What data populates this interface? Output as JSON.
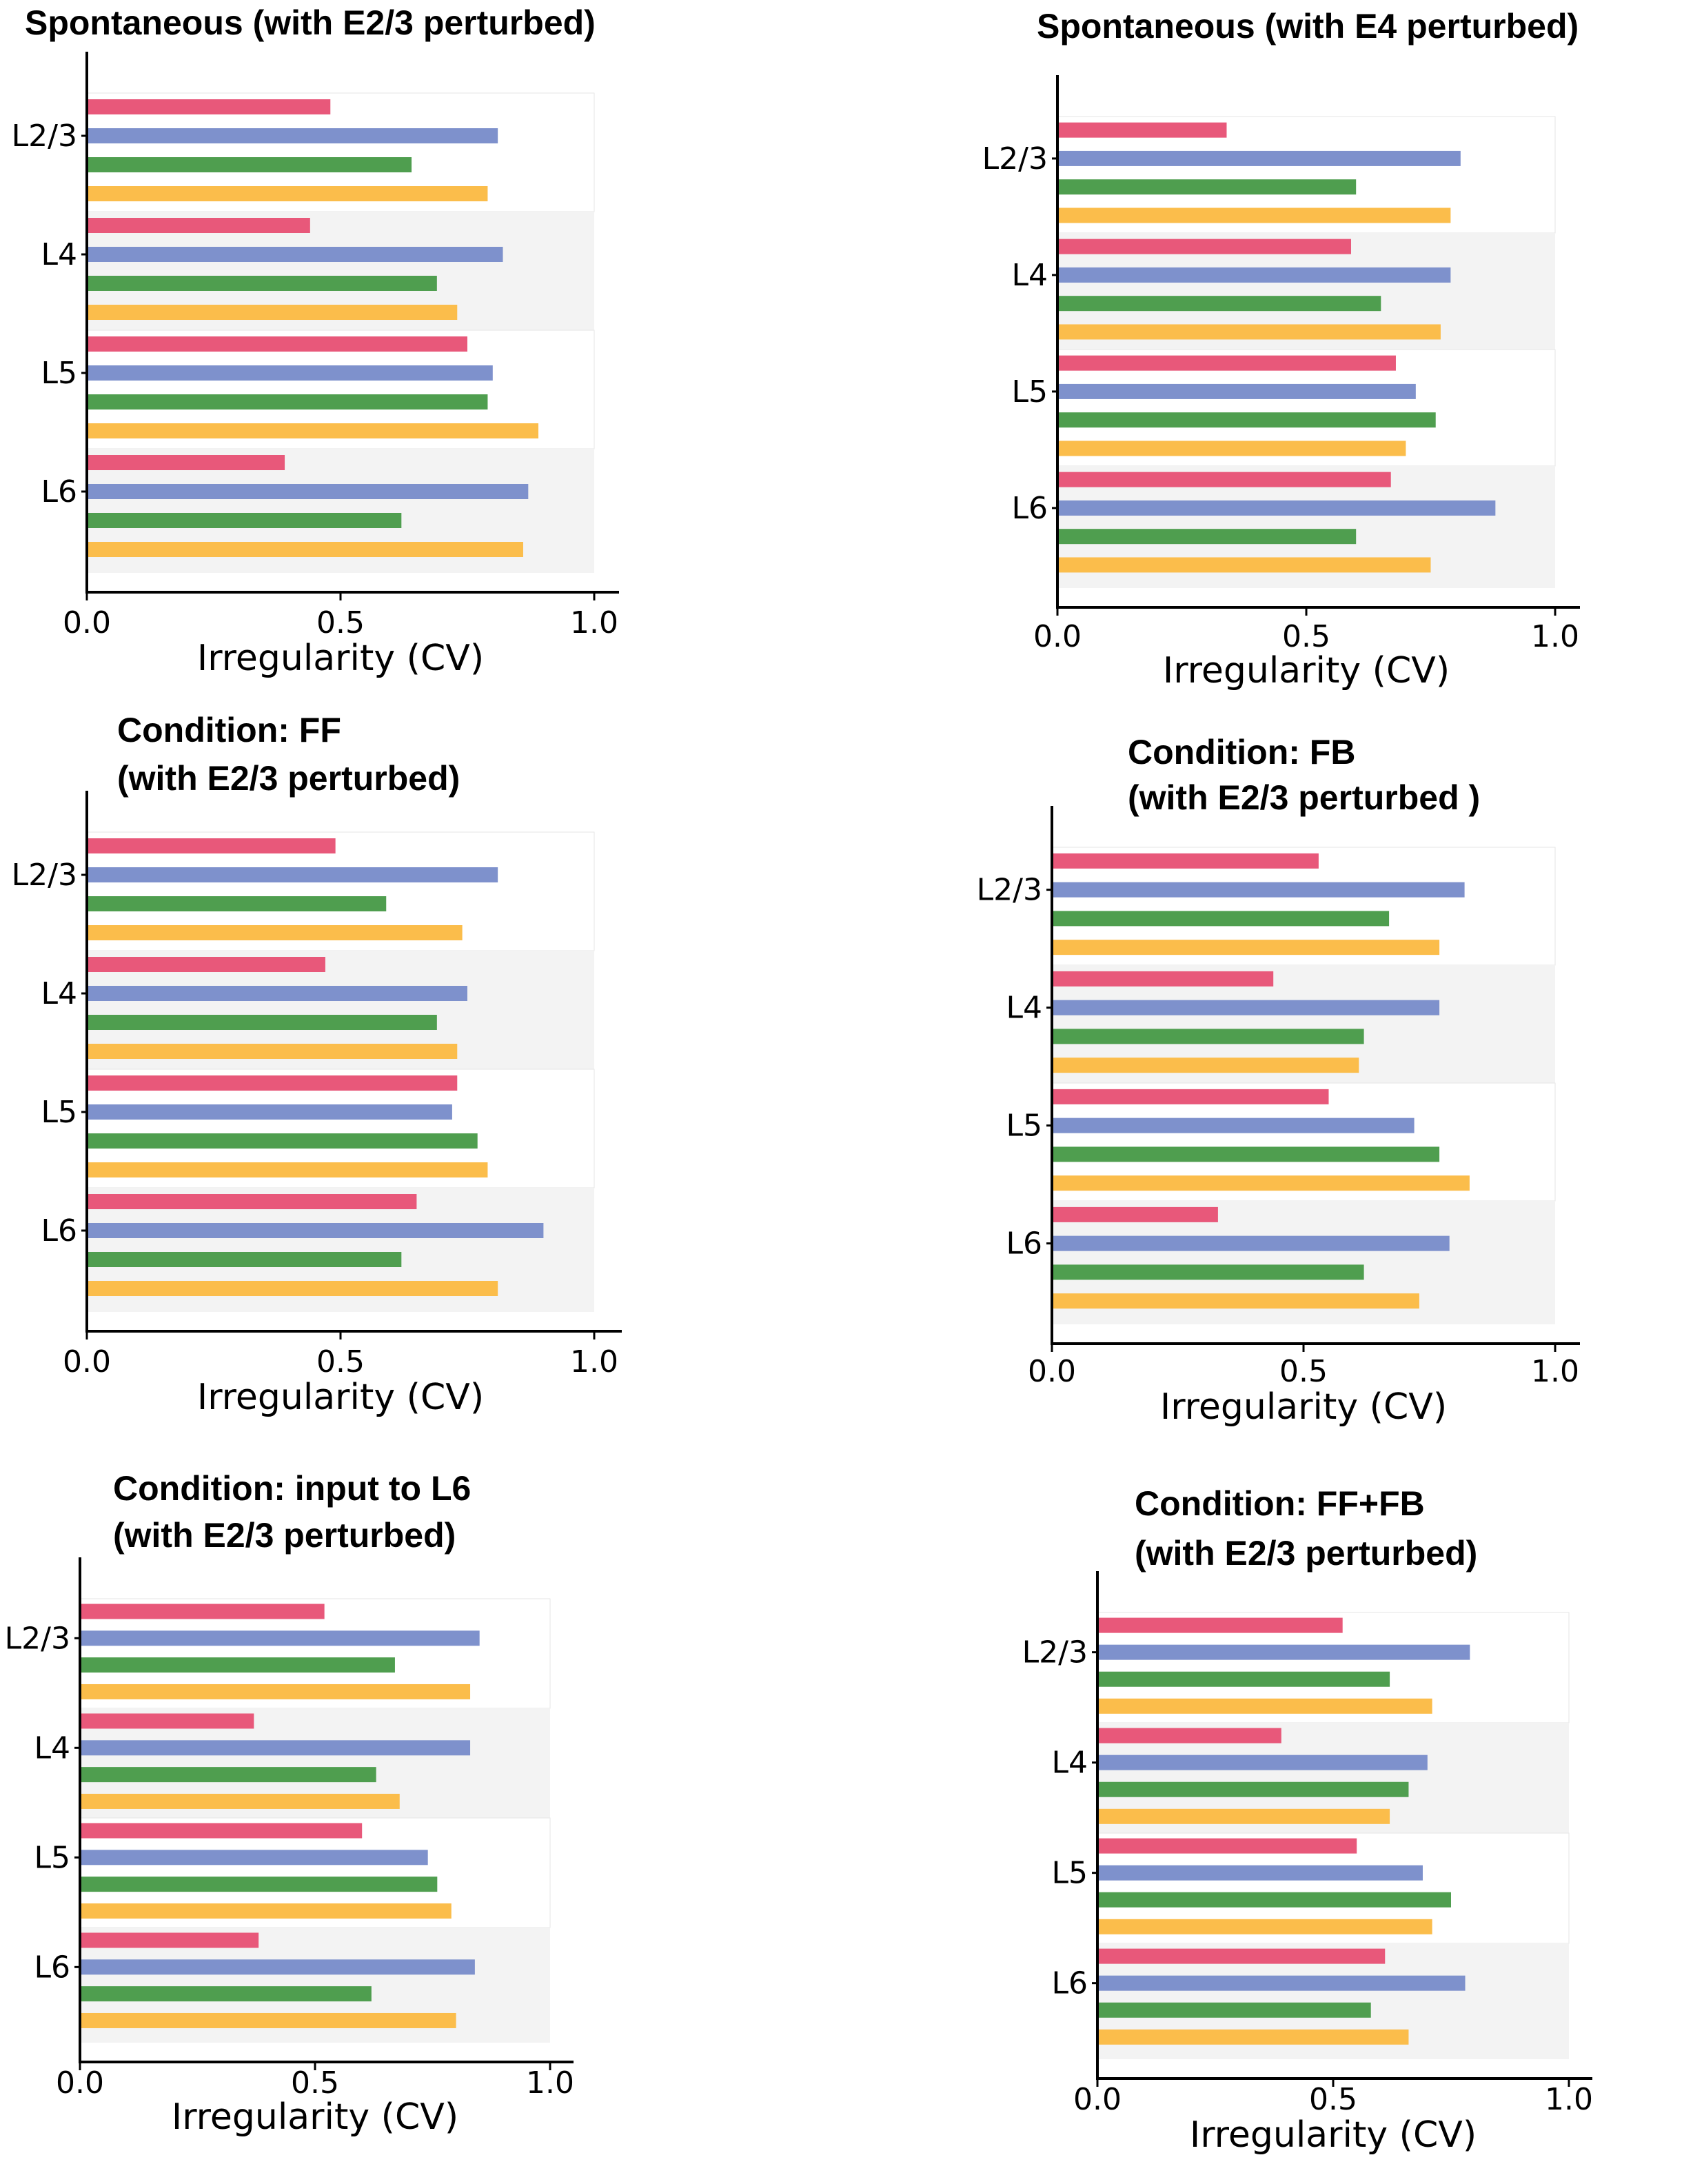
{
  "colors": {
    "series": [
      "#e8587a",
      "#7e91cc",
      "#4f9e4f",
      "#fbbd4b"
    ],
    "band_shade": "#f3f3f3",
    "axis": "#000000"
  },
  "chart_data": [
    {
      "type": "bar",
      "orientation": "horizontal",
      "title": [
        "Spontaneous (with E2/3 perturbed)"
      ],
      "categories": [
        "L2/3",
        "L4",
        "L5",
        "L6"
      ],
      "series": [
        {
          "values": [
            0.48,
            0.44,
            0.75,
            0.39
          ]
        },
        {
          "values": [
            0.81,
            0.82,
            0.8,
            0.87
          ]
        },
        {
          "values": [
            0.64,
            0.69,
            0.79,
            0.62
          ]
        },
        {
          "values": [
            0.79,
            0.73,
            0.89,
            0.86
          ]
        }
      ],
      "xlabel": "Irregularity (CV)",
      "xlim": [
        0.0,
        1.0
      ],
      "xticks": [
        "0.0",
        "0.5",
        "1.0"
      ],
      "grid": false
    },
    {
      "type": "bar",
      "orientation": "horizontal",
      "title": [
        "Spontaneous (with E4 perturbed)"
      ],
      "categories": [
        "L2/3",
        "L4",
        "L5",
        "L6"
      ],
      "series": [
        {
          "values": [
            0.34,
            0.59,
            0.68,
            0.67
          ]
        },
        {
          "values": [
            0.81,
            0.79,
            0.72,
            0.88
          ]
        },
        {
          "values": [
            0.6,
            0.65,
            0.76,
            0.6
          ]
        },
        {
          "values": [
            0.79,
            0.77,
            0.7,
            0.75
          ]
        }
      ],
      "xlabel": "Irregularity (CV)",
      "xlim": [
        0.0,
        1.0
      ],
      "xticks": [
        "0.0",
        "0.5",
        "1.0"
      ],
      "grid": false
    },
    {
      "type": "bar",
      "orientation": "horizontal",
      "title": [
        "Condition: FF",
        "(with E2/3 perturbed)"
      ],
      "categories": [
        "L2/3",
        "L4",
        "L5",
        "L6"
      ],
      "series": [
        {
          "values": [
            0.49,
            0.47,
            0.73,
            0.65
          ]
        },
        {
          "values": [
            0.81,
            0.75,
            0.72,
            0.9
          ]
        },
        {
          "values": [
            0.59,
            0.69,
            0.77,
            0.62
          ]
        },
        {
          "values": [
            0.74,
            0.73,
            0.79,
            0.81
          ]
        }
      ],
      "xlabel": "Irregularity (CV)",
      "xlim": [
        0.0,
        1.0
      ],
      "xticks": [
        "0.0",
        "0.5",
        "1.0"
      ],
      "grid": false
    },
    {
      "type": "bar",
      "orientation": "horizontal",
      "title": [
        "Condition: FB",
        "(with E2/3 perturbed )"
      ],
      "categories": [
        "L2/3",
        "L4",
        "L5",
        "L6"
      ],
      "series": [
        {
          "values": [
            0.53,
            0.44,
            0.55,
            0.33
          ]
        },
        {
          "values": [
            0.82,
            0.77,
            0.72,
            0.79
          ]
        },
        {
          "values": [
            0.67,
            0.62,
            0.77,
            0.62
          ]
        },
        {
          "values": [
            0.77,
            0.61,
            0.83,
            0.73
          ]
        }
      ],
      "xlabel": "Irregularity (CV)",
      "xlim": [
        0.0,
        1.0
      ],
      "xticks": [
        "0.0",
        "0.5",
        "1.0"
      ],
      "grid": false
    },
    {
      "type": "bar",
      "orientation": "horizontal",
      "title": [
        "Condition: input to L6",
        "(with E2/3 perturbed)"
      ],
      "categories": [
        "L2/3",
        "L4",
        "L5",
        "L6"
      ],
      "series": [
        {
          "values": [
            0.52,
            0.37,
            0.6,
            0.38
          ]
        },
        {
          "values": [
            0.85,
            0.83,
            0.74,
            0.84
          ]
        },
        {
          "values": [
            0.67,
            0.63,
            0.76,
            0.62
          ]
        },
        {
          "values": [
            0.83,
            0.68,
            0.79,
            0.8
          ]
        }
      ],
      "xlabel": "Irregularity (CV)",
      "xlim": [
        0.0,
        1.0
      ],
      "xticks": [
        "0.0",
        "0.5",
        "1.0"
      ],
      "grid": false
    },
    {
      "type": "bar",
      "orientation": "horizontal",
      "title": [
        "Condition: FF+FB",
        "(with E2/3 perturbed)"
      ],
      "categories": [
        "L2/3",
        "L4",
        "L5",
        "L6"
      ],
      "series": [
        {
          "values": [
            0.52,
            0.39,
            0.55,
            0.61
          ]
        },
        {
          "values": [
            0.79,
            0.7,
            0.69,
            0.78
          ]
        },
        {
          "values": [
            0.62,
            0.66,
            0.75,
            0.58
          ]
        },
        {
          "values": [
            0.71,
            0.62,
            0.71,
            0.66
          ]
        }
      ],
      "xlabel": "Irregularity (CV)",
      "xlim": [
        0.0,
        1.0
      ],
      "xticks": [
        "0.0",
        "0.5",
        "1.0"
      ],
      "grid": false
    }
  ]
}
